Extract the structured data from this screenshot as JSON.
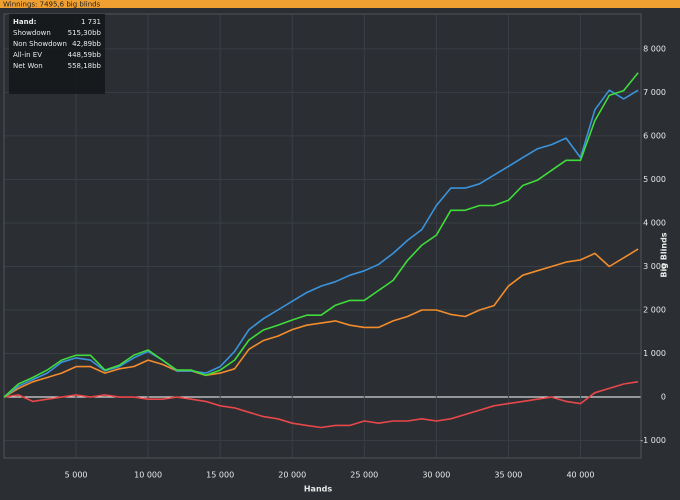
{
  "chart_data": {
    "type": "line",
    "title": "Winnings: 7495,6 big blinds",
    "xlabel": "Hands",
    "ylabel": "Big Blinds",
    "info_rows": [
      [
        "Hand:",
        "1 731"
      ],
      [
        "Showdown",
        "515,30bb"
      ],
      [
        "Non Showdown",
        "42,89bb"
      ],
      [
        "All-in EV",
        "448,59bb"
      ],
      [
        "Net Won",
        "558,18bb"
      ]
    ],
    "x": [
      0,
      1000,
      2000,
      3000,
      4000,
      5000,
      6000,
      7000,
      8000,
      9000,
      10000,
      11000,
      12000,
      13000,
      14000,
      15000,
      16000,
      17000,
      18000,
      19000,
      20000,
      21000,
      22000,
      23000,
      24000,
      25000,
      26000,
      27000,
      28000,
      29000,
      30000,
      31000,
      32000,
      33000,
      34000,
      35000,
      36000,
      37000,
      38000,
      39000,
      40000,
      41000,
      42000,
      43000,
      44000
    ],
    "series": [
      {
        "color": "#e8474a",
        "values": [
          0,
          50,
          -100,
          -50,
          0,
          50,
          0,
          50,
          0,
          0,
          -50,
          -50,
          0,
          -50,
          -100,
          -200,
          -250,
          -350,
          -450,
          -500,
          -600,
          -650,
          -700,
          -650,
          -650,
          -550,
          -600,
          -550,
          -550,
          -500,
          -550,
          -500,
          -400,
          -300,
          -200,
          -150,
          -100,
          -50,
          0,
          -100,
          -150,
          100,
          200,
          300,
          350
        ]
      },
      {
        "color": "#f28c2c",
        "values": [
          0,
          200,
          350,
          450,
          550,
          700,
          700,
          550,
          650,
          700,
          850,
          750,
          600,
          600,
          500,
          550,
          650,
          1100,
          1300,
          1400,
          1550,
          1650,
          1700,
          1750,
          1650,
          1600,
          1600,
          1750,
          1850,
          2000,
          2000,
          1900,
          1850,
          2000,
          2100,
          2550,
          2800,
          2900,
          3000,
          3100,
          3150,
          3300,
          3000,
          3200,
          3400
        ]
      },
      {
        "color": "#3b93dc",
        "values": [
          0,
          250,
          400,
          550,
          800,
          900,
          850,
          600,
          700,
          900,
          1050,
          850,
          600,
          600,
          550,
          700,
          1050,
          1550,
          1800,
          2000,
          2200,
          2400,
          2550,
          2650,
          2800,
          2900,
          3050,
          3300,
          3600,
          3850,
          4400,
          4800,
          4800,
          4900,
          5100,
          5300,
          5500,
          5700,
          5800,
          5950,
          5500,
          6600,
          7050,
          6850,
          7050
        ]
      },
      {
        "color": "#3fdc3a",
        "values": [
          0,
          300,
          450,
          620,
          850,
          960,
          960,
          620,
          730,
          960,
          1080,
          850,
          620,
          620,
          500,
          620,
          850,
          1310,
          1540,
          1650,
          1770,
          1880,
          1880,
          2110,
          2220,
          2220,
          2450,
          2680,
          3140,
          3490,
          3720,
          4290,
          4290,
          4400,
          4400,
          4520,
          4860,
          4980,
          5210,
          5440,
          5440,
          6350,
          6930,
          7040,
          7450
        ]
      }
    ],
    "xlim": [
      0,
      44200
    ],
    "ylim": [
      -1400,
      8800
    ],
    "xticks": [
      {
        "value": 5000,
        "label": "5 000"
      },
      {
        "value": 10000,
        "label": "10 000"
      },
      {
        "value": 15000,
        "label": "15 000"
      },
      {
        "value": 20000,
        "label": "20 000"
      },
      {
        "value": 25000,
        "label": "25 000"
      },
      {
        "value": 30000,
        "label": "30 000"
      },
      {
        "value": 35000,
        "label": "35 000"
      },
      {
        "value": 40000,
        "label": "40 000"
      }
    ],
    "yticks": [
      {
        "value": -1000,
        "label": "-1 000"
      },
      0,
      {
        "value": 1000,
        "label": "1 000"
      },
      {
        "value": 2000,
        "label": "2 000"
      },
      {
        "value": 3000,
        "label": "3 000"
      },
      {
        "value": 4000,
        "label": "4 000"
      },
      {
        "value": 5000,
        "label": "5 000"
      },
      {
        "value": 6000,
        "label": "6 000"
      },
      {
        "value": 7000,
        "label": "7 000"
      },
      {
        "value": 8000,
        "label": "8 000"
      }
    ],
    "grid": true
  }
}
